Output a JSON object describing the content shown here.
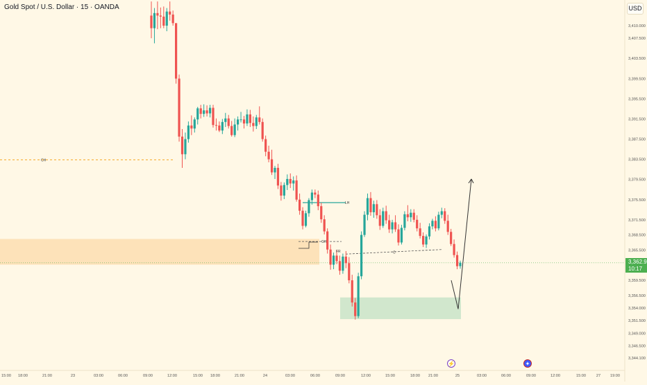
{
  "header": {
    "title": "Gold Spot / U.S. Dollar · 15 · OANDA",
    "currency": "USD"
  },
  "price_tag": {
    "price": "3,362.990",
    "countdown": "10:17"
  },
  "colors": {
    "background": "#fff8e6",
    "up": "#26a69a",
    "down": "#ef5350",
    "supply_zone": "#fde0b6",
    "demand_zone": "#cfe6cb",
    "last_price": "#4caf50"
  },
  "annotations": {
    "ch_left": "CH",
    "ch_mid": "CH",
    "lh": "LH",
    "fr": "FR",
    "small": "C"
  },
  "events": {
    "bolt": "earnings-bolt-icon",
    "flag": "us-flag-icon"
  },
  "chart_data": {
    "type": "candlestick",
    "title": "Gold Spot / U.S. Dollar · 15 · OANDA",
    "symbol": "XAUUSD",
    "interval": "15",
    "source": "OANDA",
    "currency": "USD",
    "last_price": 3362.99,
    "ylim": [
      3343.0,
      3415.0
    ],
    "y_ticks": [
      "3,410.000",
      "3,407.500",
      "3,403.500",
      "3,399.500",
      "3,395.500",
      "3,391.500",
      "3,387.500",
      "3,383.500",
      "3,379.500",
      "3,375.500",
      "3,371.500",
      "3,368.500",
      "3,365.500",
      "3,359.500",
      "3,356.500",
      "3,354.000",
      "3,351.500",
      "3,349.000",
      "3,346.500",
      "3,344.100"
    ],
    "y_tick_values": [
      3410.0,
      3407.5,
      3403.5,
      3399.5,
      3395.5,
      3391.5,
      3387.5,
      3383.5,
      3379.5,
      3375.5,
      3371.5,
      3368.5,
      3365.5,
      3359.5,
      3356.5,
      3354.0,
      3351.5,
      3349.0,
      3346.5,
      3344.1
    ],
    "x_ticks": [
      "15:00",
      "18:00",
      "21:00",
      "23",
      "03:00",
      "06:00",
      "09:00",
      "12:00",
      "15:00",
      "18:00",
      "21:00",
      "24",
      "03:00",
      "06:00",
      "09:00",
      "12:00",
      "15:00",
      "18:00",
      "21:00",
      "25",
      "03:00",
      "06:00",
      "09:00",
      "12:00",
      "15:00",
      "27",
      "19:00"
    ],
    "grid": false,
    "key_levels": [
      {
        "label": "CH",
        "price": 3383.4
      },
      {
        "label": "CH",
        "price": 3367.2
      },
      {
        "label": "LH",
        "price": 3374.9
      },
      {
        "label": "C",
        "price": 3364.7
      }
    ],
    "zones": [
      {
        "kind": "supply",
        "price_top": 3367.7,
        "price_bottom": 3362.6,
        "from": "15:00",
        "to": "06:00"
      },
      {
        "kind": "demand",
        "price_top": 3356.1,
        "price_bottom": 3351.8,
        "from": "09:00",
        "to": "03:00"
      }
    ],
    "projection": {
      "from_price": 3353.8,
      "to_price": 3379.6
    },
    "candles_ohlc": [
      [
        3412.0,
        3414.8,
        3407.5,
        3409.5
      ],
      [
        3409.5,
        3413.5,
        3406.5,
        3412.5
      ],
      [
        3412.5,
        3414.8,
        3409.3,
        3412.0
      ],
      [
        3412.0,
        3413.6,
        3409.5,
        3411.8
      ],
      [
        3411.8,
        3413.8,
        3409.5,
        3410.0
      ],
      [
        3410.0,
        3413.5,
        3408.9,
        3412.8
      ],
      [
        3412.8,
        3414.8,
        3411.0,
        3412.2
      ],
      [
        3412.2,
        3413.0,
        3410.0,
        3410.5
      ],
      [
        3410.5,
        3410.5,
        3398.5,
        3399.5
      ],
      [
        3399.5,
        3400.3,
        3387.0,
        3388.0
      ],
      [
        3388.0,
        3389.5,
        3381.8,
        3384.5
      ],
      [
        3384.5,
        3388.8,
        3383.5,
        3387.5
      ],
      [
        3387.5,
        3391.0,
        3386.8,
        3390.2
      ],
      [
        3390.2,
        3392.2,
        3388.3,
        3389.6
      ],
      [
        3389.6,
        3391.8,
        3388.8,
        3391.4
      ],
      [
        3391.4,
        3393.9,
        3390.4,
        3393.6
      ],
      [
        3393.6,
        3394.3,
        3391.6,
        3392.5
      ],
      [
        3392.5,
        3394.4,
        3391.9,
        3393.2
      ],
      [
        3393.2,
        3394.2,
        3392.0,
        3392.6
      ],
      [
        3392.6,
        3394.3,
        3391.8,
        3393.7
      ],
      [
        3393.7,
        3394.3,
        3389.8,
        3390.3
      ],
      [
        3390.3,
        3391.6,
        3389.2,
        3390.2
      ],
      [
        3390.2,
        3391.0,
        3388.9,
        3389.2
      ],
      [
        3389.2,
        3391.5,
        3388.5,
        3390.9
      ],
      [
        3390.9,
        3392.7,
        3389.9,
        3391.6
      ],
      [
        3391.6,
        3392.3,
        3389.6,
        3390.1
      ],
      [
        3390.1,
        3391.1,
        3388.0,
        3388.3
      ],
      [
        3388.3,
        3391.6,
        3387.9,
        3390.4
      ],
      [
        3390.4,
        3392.0,
        3389.2,
        3391.4
      ],
      [
        3391.4,
        3392.9,
        3390.8,
        3391.4
      ],
      [
        3391.4,
        3392.1,
        3389.6,
        3390.6
      ],
      [
        3390.6,
        3393.4,
        3390.1,
        3392.4
      ],
      [
        3392.4,
        3393.3,
        3389.9,
        3390.7
      ],
      [
        3390.7,
        3392.0,
        3389.0,
        3390.1
      ],
      [
        3390.1,
        3392.3,
        3389.5,
        3391.8
      ],
      [
        3391.8,
        3394.0,
        3390.4,
        3390.9
      ],
      [
        3390.9,
        3391.6,
        3387.0,
        3387.5
      ],
      [
        3387.5,
        3388.2,
        3384.1,
        3385.0
      ],
      [
        3385.0,
        3386.2,
        3382.9,
        3383.5
      ],
      [
        3383.5,
        3385.4,
        3380.4,
        3380.9
      ],
      [
        3380.9,
        3382.2,
        3379.6,
        3381.8
      ],
      [
        3381.8,
        3382.6,
        3377.6,
        3378.3
      ],
      [
        3378.3,
        3379.0,
        3375.3,
        3376.3
      ],
      [
        3376.3,
        3378.9,
        3375.6,
        3378.4
      ],
      [
        3378.4,
        3380.5,
        3377.4,
        3379.6
      ],
      [
        3379.6,
        3380.7,
        3377.8,
        3378.7
      ],
      [
        3378.7,
        3380.1,
        3377.3,
        3379.3
      ],
      [
        3379.3,
        3380.3,
        3375.1,
        3375.5
      ],
      [
        3375.5,
        3376.7,
        3372.5,
        3373.3
      ],
      [
        3373.3,
        3374.0,
        3369.6,
        3370.3
      ],
      [
        3370.3,
        3373.3,
        3370.0,
        3372.8
      ],
      [
        3372.8,
        3375.8,
        3372.1,
        3375.4
      ],
      [
        3375.4,
        3377.5,
        3374.5,
        3376.9
      ],
      [
        3376.9,
        3377.5,
        3375.8,
        3376.5
      ],
      [
        3376.5,
        3377.3,
        3373.4,
        3374.2
      ],
      [
        3374.2,
        3374.9,
        3370.9,
        3371.6
      ],
      [
        3371.6,
        3372.4,
        3368.6,
        3369.2
      ],
      [
        3369.2,
        3369.8,
        3364.8,
        3365.6
      ],
      [
        3365.6,
        3366.6,
        3361.6,
        3362.6
      ],
      [
        3362.6,
        3365.0,
        3361.7,
        3364.4
      ],
      [
        3364.4,
        3365.5,
        3362.7,
        3363.3
      ],
      [
        3363.3,
        3364.4,
        3360.6,
        3361.4
      ],
      [
        3361.4,
        3364.8,
        3360.8,
        3364.2
      ],
      [
        3364.2,
        3365.3,
        3361.9,
        3362.9
      ],
      [
        3362.9,
        3364.1,
        3358.9,
        3359.5
      ],
      [
        3359.5,
        3360.6,
        3354.3,
        3355.1
      ],
      [
        3355.1,
        3356.0,
        3351.7,
        3352.4
      ],
      [
        3352.4,
        3361.0,
        3352.0,
        3360.3
      ],
      [
        3360.3,
        3369.2,
        3359.7,
        3368.5
      ],
      [
        3368.5,
        3373.2,
        3368.1,
        3372.5
      ],
      [
        3372.5,
        3376.7,
        3371.4,
        3375.8
      ],
      [
        3375.8,
        3377.0,
        3372.3,
        3373.0
      ],
      [
        3373.0,
        3375.3,
        3371.9,
        3374.6
      ],
      [
        3374.6,
        3375.4,
        3371.7,
        3372.4
      ],
      [
        3372.4,
        3373.6,
        3369.5,
        3370.3
      ],
      [
        3370.3,
        3373.9,
        3369.9,
        3373.2
      ],
      [
        3373.2,
        3374.3,
        3370.7,
        3371.4
      ],
      [
        3371.4,
        3372.5,
        3368.9,
        3369.6
      ],
      [
        3369.6,
        3371.5,
        3368.8,
        3371.0
      ],
      [
        3371.0,
        3372.4,
        3369.1,
        3369.6
      ],
      [
        3369.6,
        3370.6,
        3366.4,
        3367.0
      ],
      [
        3367.0,
        3370.5,
        3366.6,
        3369.9
      ],
      [
        3369.9,
        3373.2,
        3369.4,
        3372.6
      ],
      [
        3372.6,
        3374.4,
        3371.2,
        3372.0
      ],
      [
        3372.0,
        3373.6,
        3371.1,
        3372.9
      ],
      [
        3372.9,
        3373.6,
        3371.0,
        3371.5
      ],
      [
        3371.5,
        3372.4,
        3369.2,
        3369.8
      ],
      [
        3369.8,
        3370.9,
        3367.8,
        3368.3
      ],
      [
        3368.3,
        3369.0,
        3366.1,
        3366.6
      ],
      [
        3366.6,
        3368.6,
        3365.9,
        3368.2
      ],
      [
        3368.2,
        3370.8,
        3367.6,
        3370.2
      ],
      [
        3370.2,
        3371.7,
        3369.6,
        3371.3
      ],
      [
        3371.3,
        3372.2,
        3369.2,
        3369.8
      ],
      [
        3369.8,
        3373.1,
        3369.4,
        3372.5
      ],
      [
        3372.5,
        3373.9,
        3371.8,
        3373.2
      ],
      [
        3373.2,
        3373.8,
        3370.7,
        3371.3
      ],
      [
        3371.3,
        3372.5,
        3368.5,
        3369.1
      ],
      [
        3369.1,
        3369.7,
        3366.3,
        3366.7
      ],
      [
        3366.7,
        3367.6,
        3364.0,
        3364.5
      ],
      [
        3364.5,
        3365.2,
        3361.7,
        3362.3
      ],
      [
        3362.3,
        3363.4,
        3361.8,
        3362.99
      ]
    ]
  }
}
